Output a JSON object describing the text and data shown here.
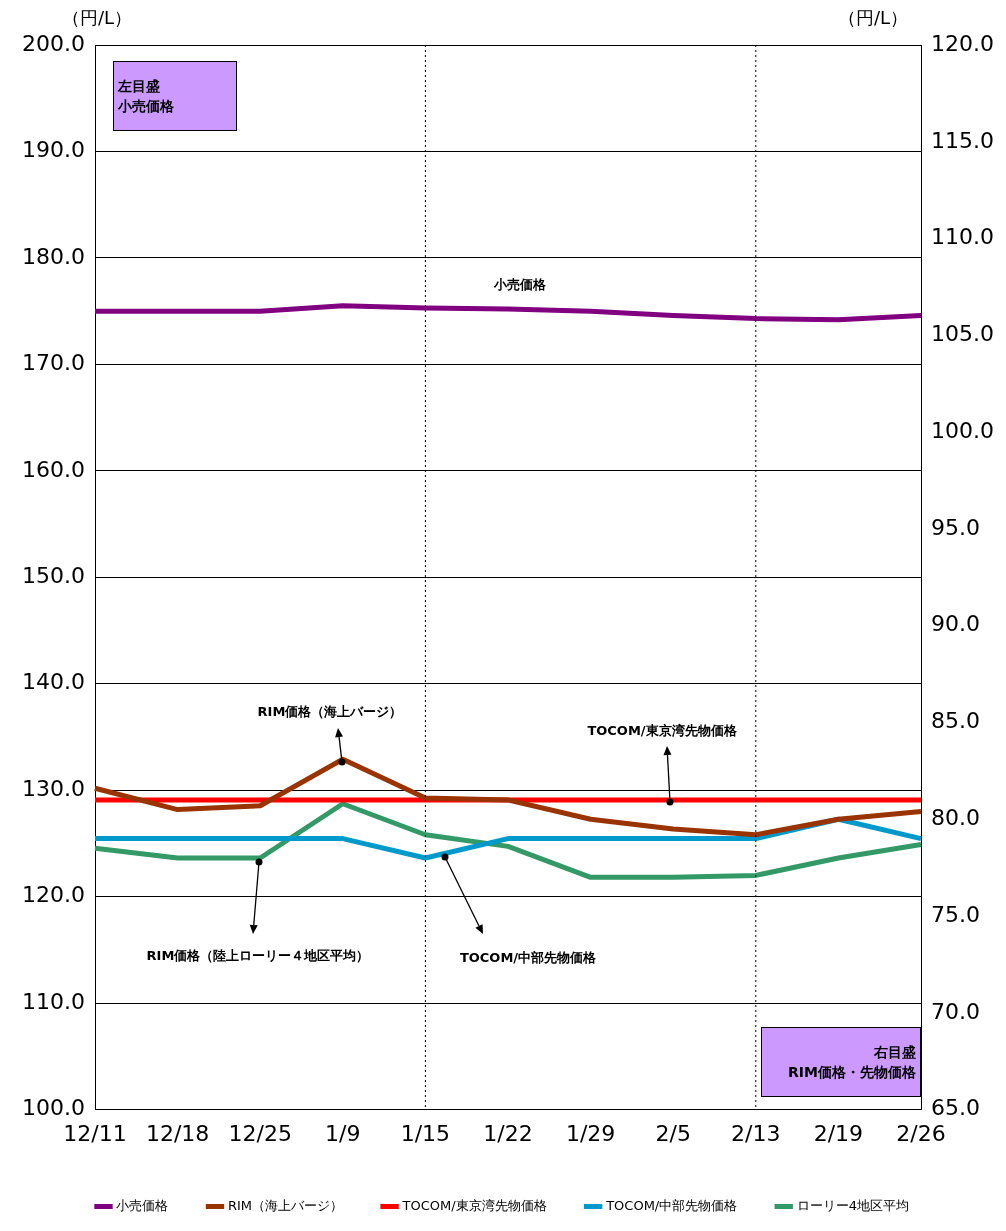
{
  "chart_data": {
    "type": "line",
    "categories": [
      "12/11",
      "12/18",
      "12/25",
      "1/9",
      "1/15",
      "1/22",
      "1/29",
      "2/5",
      "2/13",
      "2/19",
      "2/26"
    ],
    "series": [
      {
        "name": "小売価格",
        "color": "#800080",
        "axis": "y",
        "values": [
          175.0,
          175.0,
          175.0,
          175.5,
          175.3,
          175.2,
          175.0,
          174.6,
          174.3,
          174.2,
          174.6
        ]
      },
      {
        "name": "RIM（海上バージ）",
        "color": "#993300",
        "axis": "y2",
        "values": [
          81.6,
          80.5,
          80.7,
          83.1,
          81.1,
          81.0,
          80.0,
          79.5,
          79.2,
          80.0,
          80.4
        ]
      },
      {
        "name": "TOCOM/東京湾先物価格",
        "color": "#ff0000",
        "axis": "y2",
        "values": [
          81.0,
          81.0,
          81.0,
          81.0,
          81.0,
          81.0,
          81.0,
          81.0,
          81.0,
          81.0,
          81.0
        ]
      },
      {
        "name": "TOCOM/中部先物価格",
        "color": "#0099cc",
        "axis": "y2",
        "values": [
          79.0,
          79.0,
          79.0,
          79.0,
          78.0,
          79.0,
          79.0,
          79.0,
          79.0,
          80.0,
          79.0
        ]
      },
      {
        "name": "ローリー4地区平均",
        "color": "#339966",
        "axis": "y2",
        "values": [
          78.5,
          78.0,
          78.0,
          80.8,
          79.2,
          78.6,
          77.0,
          77.0,
          77.1,
          78.0,
          78.7
        ]
      }
    ],
    "ylabel": "（円/L）",
    "y2label": "（円/L）",
    "ylim": [
      100,
      200
    ],
    "yticks": [
      {
        "value": 100,
        "label": "100.0"
      },
      {
        "value": 110,
        "label": "110.0"
      },
      {
        "value": 120,
        "label": "120.0"
      },
      {
        "value": 130,
        "label": "130.0"
      },
      {
        "value": 140,
        "label": "140.0"
      },
      {
        "value": 150,
        "label": "150.0"
      },
      {
        "value": 160,
        "label": "160.0"
      },
      {
        "value": 170,
        "label": "170.0"
      },
      {
        "value": 180,
        "label": "180.0"
      },
      {
        "value": 190,
        "label": "190.0"
      },
      {
        "value": 200,
        "label": "200.0"
      }
    ],
    "y2lim": [
      65,
      120
    ],
    "y2ticks": [
      {
        "value": 65,
        "label": "65.0"
      },
      {
        "value": 70,
        "label": "70.0"
      },
      {
        "value": 75,
        "label": "75.0"
      },
      {
        "value": 80,
        "label": "80.0"
      },
      {
        "value": 85,
        "label": "85.0"
      },
      {
        "value": 90,
        "label": "90.0"
      },
      {
        "value": 95,
        "label": "95.0"
      },
      {
        "value": 100,
        "label": "100.0"
      },
      {
        "value": 105,
        "label": "105.0"
      },
      {
        "value": 110,
        "label": "110.0"
      },
      {
        "value": 115,
        "label": "115.0"
      },
      {
        "value": 120,
        "label": "120.0"
      }
    ],
    "ref_lines": [
      {
        "axis": "x",
        "value": "1/15",
        "color": "#000000",
        "line_style": "dotted"
      },
      {
        "axis": "x",
        "value": "2/13",
        "color": "#000000",
        "line_style": "dotted"
      }
    ],
    "annotations": [
      "左目盛",
      "小売価格",
      "右目盛",
      "RIM価格・先物価格",
      "小売価格",
      "RIM価格（海上バージ）",
      "TOCOM/東京湾先物価格",
      "RIM価格（陸上ローリー４地区平均）",
      "TOCOM/中部先物価格"
    ],
    "grid": "y",
    "legend": "bottom",
    "marker": "none",
    "line_style": "solid"
  }
}
